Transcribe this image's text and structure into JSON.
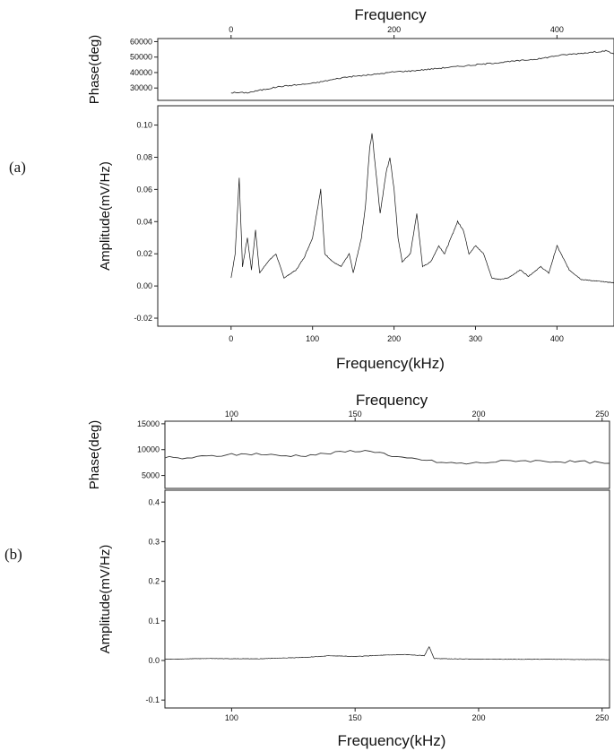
{
  "chart_data": [
    {
      "panel_label": "(a)",
      "type": "line",
      "top_title": "Frequency",
      "xlabel": "Frequency(kHz)",
      "phase_ylabel": "Phase(deg)",
      "amp_ylabel": "Amplitude(mV/Hz)",
      "xlim": [
        -90,
        470
      ],
      "x_ticks_bottom": [
        "0",
        "100",
        "200",
        "300",
        "400"
      ],
      "x_ticks_top": [
        "0",
        "200",
        "400"
      ],
      "phase_ylim": [
        22000,
        62000
      ],
      "phase_ticks": [
        "30000",
        "40000",
        "50000",
        "60000"
      ],
      "amp_ylim": [
        -0.025,
        0.112
      ],
      "amp_ticks": [
        "-0.02",
        "0.00",
        "0.02",
        "0.04",
        "0.06",
        "0.08",
        "0.10"
      ],
      "phase_points": [
        [
          0,
          27000
        ],
        [
          20,
          27000
        ],
        [
          40,
          29000
        ],
        [
          60,
          31000
        ],
        [
          80,
          32000
        ],
        [
          100,
          33000
        ],
        [
          120,
          35000
        ],
        [
          140,
          37000
        ],
        [
          160,
          38000
        ],
        [
          180,
          39000
        ],
        [
          200,
          40500
        ],
        [
          220,
          41000
        ],
        [
          240,
          42000
        ],
        [
          260,
          43000
        ],
        [
          280,
          44000
        ],
        [
          300,
          45000
        ],
        [
          320,
          46000
        ],
        [
          340,
          47000
        ],
        [
          360,
          48000
        ],
        [
          380,
          49000
        ],
        [
          400,
          51000
        ],
        [
          420,
          52000
        ],
        [
          440,
          53000
        ],
        [
          460,
          54000
        ],
        [
          470,
          52000
        ]
      ],
      "amp_points": [
        [
          0,
          0.005
        ],
        [
          5,
          0.02
        ],
        [
          10,
          0.067
        ],
        [
          14,
          0.012
        ],
        [
          20,
          0.03
        ],
        [
          25,
          0.01
        ],
        [
          30,
          0.035
        ],
        [
          35,
          0.008
        ],
        [
          45,
          0.015
        ],
        [
          55,
          0.02
        ],
        [
          65,
          0.005
        ],
        [
          80,
          0.01
        ],
        [
          90,
          0.018
        ],
        [
          100,
          0.03
        ],
        [
          105,
          0.045
        ],
        [
          110,
          0.06
        ],
        [
          115,
          0.02
        ],
        [
          125,
          0.015
        ],
        [
          135,
          0.012
        ],
        [
          145,
          0.02
        ],
        [
          150,
          0.008
        ],
        [
          160,
          0.03
        ],
        [
          165,
          0.05
        ],
        [
          170,
          0.085
        ],
        [
          173,
          0.095
        ],
        [
          178,
          0.07
        ],
        [
          183,
          0.045
        ],
        [
          190,
          0.07
        ],
        [
          195,
          0.08
        ],
        [
          200,
          0.06
        ],
        [
          205,
          0.03
        ],
        [
          210,
          0.015
        ],
        [
          220,
          0.02
        ],
        [
          228,
          0.045
        ],
        [
          235,
          0.012
        ],
        [
          245,
          0.015
        ],
        [
          255,
          0.025
        ],
        [
          262,
          0.02
        ],
        [
          270,
          0.03
        ],
        [
          278,
          0.04
        ],
        [
          285,
          0.035
        ],
        [
          292,
          0.02
        ],
        [
          300,
          0.025
        ],
        [
          310,
          0.02
        ],
        [
          320,
          0.005
        ],
        [
          330,
          0.004
        ],
        [
          340,
          0.005
        ],
        [
          355,
          0.01
        ],
        [
          365,
          0.006
        ],
        [
          380,
          0.012
        ],
        [
          390,
          0.008
        ],
        [
          400,
          0.025
        ],
        [
          405,
          0.02
        ],
        [
          415,
          0.01
        ],
        [
          430,
          0.004
        ],
        [
          450,
          0.003
        ],
        [
          470,
          0.002
        ]
      ]
    },
    {
      "panel_label": "(b)",
      "type": "line",
      "top_title": "Frequency",
      "xlabel": "Frequency(kHz)",
      "phase_ylabel": "Phase(deg)",
      "amp_ylabel": "Amplitude(mV/Hz)",
      "xlim": [
        73,
        253
      ],
      "x_ticks_bottom": [
        "100",
        "150",
        "200",
        "250"
      ],
      "x_ticks_top": [
        "100",
        "150",
        "200",
        "250"
      ],
      "phase_ylim": [
        2500,
        15500
      ],
      "phase_ticks": [
        "5000",
        "10000",
        "15000"
      ],
      "amp_ylim": [
        -0.12,
        0.43
      ],
      "amp_ticks": [
        "-0.1",
        "0.0",
        "0.1",
        "0.2",
        "0.3",
        "0.4"
      ],
      "phase_points": [
        [
          73,
          8500
        ],
        [
          80,
          8300
        ],
        [
          90,
          8700
        ],
        [
          100,
          9000
        ],
        [
          110,
          9200
        ],
        [
          120,
          8800
        ],
        [
          130,
          8900
        ],
        [
          140,
          9300
        ],
        [
          150,
          9800
        ],
        [
          160,
          9600
        ],
        [
          165,
          8500
        ],
        [
          175,
          8200
        ],
        [
          185,
          7500
        ],
        [
          195,
          7300
        ],
        [
          205,
          7600
        ],
        [
          215,
          7900
        ],
        [
          225,
          7800
        ],
        [
          235,
          7700
        ],
        [
          245,
          7600
        ],
        [
          253,
          7200
        ]
      ],
      "amp_points": [
        [
          73,
          0.003
        ],
        [
          90,
          0.005
        ],
        [
          110,
          0.004
        ],
        [
          130,
          0.008
        ],
        [
          140,
          0.012
        ],
        [
          150,
          0.01
        ],
        [
          160,
          0.013
        ],
        [
          170,
          0.015
        ],
        [
          178,
          0.012
        ],
        [
          180,
          0.035
        ],
        [
          182,
          0.005
        ],
        [
          190,
          0.004
        ],
        [
          210,
          0.003
        ],
        [
          230,
          0.003
        ],
        [
          253,
          0.002
        ]
      ]
    }
  ]
}
